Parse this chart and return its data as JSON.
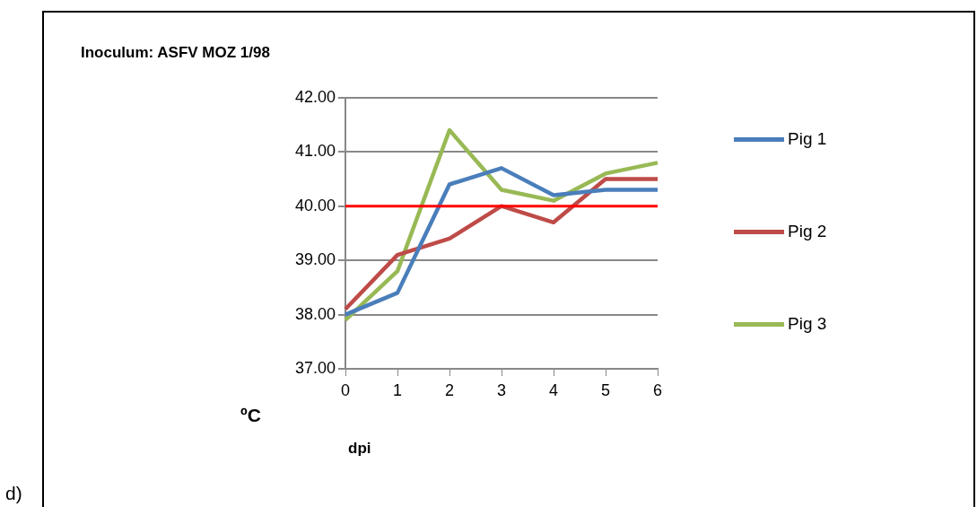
{
  "chart_data": {
    "type": "line",
    "title": "Inoculum: ASFV MOZ 1/98",
    "xlabel": "dpi",
    "ylabel": "ºC",
    "annotations": [
      "d)"
    ],
    "categories": [
      "0",
      "1",
      "2",
      "3",
      "4",
      "5",
      "6"
    ],
    "series": [
      {
        "name": "Pig 1",
        "color": "#4a7ebb",
        "values": [
          38.0,
          38.4,
          40.4,
          40.7,
          40.2,
          40.3,
          40.3
        ]
      },
      {
        "name": "Pig 2",
        "color": "#be4b48",
        "values": [
          38.1,
          39.1,
          39.4,
          40.0,
          39.7,
          40.5,
          40.5
        ]
      },
      {
        "name": "Pig 3",
        "color": "#98b954",
        "values": [
          37.9,
          38.8,
          41.4,
          40.3,
          40.1,
          40.6,
          40.8
        ]
      }
    ],
    "ylim": [
      37,
      42
    ],
    "yticks": [
      {
        "value": 37,
        "label": "37.00"
      },
      {
        "value": 38,
        "label": "38.00"
      },
      {
        "value": 39,
        "label": "39.00"
      },
      {
        "value": 40,
        "label": "40.00"
      },
      {
        "value": 41,
        "label": "41.00"
      },
      {
        "value": 42,
        "label": "42.00"
      }
    ],
    "ref_lines": [
      {
        "axis": "y",
        "value": 40,
        "color": "#ff0000"
      }
    ],
    "grid": "y",
    "legend": "right",
    "marker": "none",
    "line_style": "solid"
  }
}
